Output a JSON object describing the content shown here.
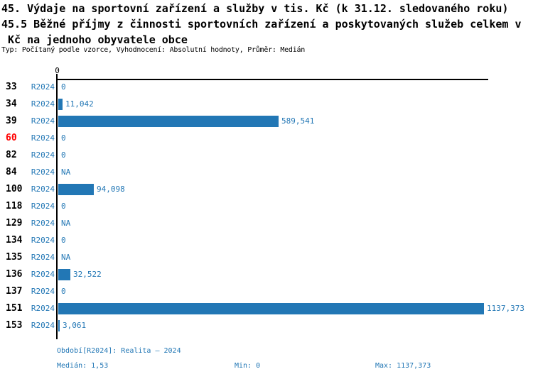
{
  "title": {
    "line1": "45. Výdaje na sportovní zařízení a služby v tis. Kč (k 31.12. sledovaného roku)",
    "line2": "45.5 Běžné příjmy z činnosti sportovních zařízení a poskytovaných služeb celkem v",
    "line3": " Kč na jednoho obyvatele obce",
    "meta": "Typ: Počítaný podle vzorce, Vyhodnocení: Absolutní hodnoty, Průměr: Medián"
  },
  "colors": {
    "bar_blue": "#2277b5",
    "text_blue": "#2277b5",
    "highlight_red": "#ff0000",
    "axis_black": "#000000",
    "background": "#ffffff"
  },
  "chart_data": {
    "type": "bar",
    "orientation": "horizontal",
    "title": "45. Výdaje na sportovní zařízení a služby v tis. Kč (k 31.12. sledovaného roku) — 45.5 Běžné příjmy z činnosti sportovních zařízení a poskytovaných služeb celkem v Kč na jednoho obyvatele obce",
    "series_label": "R2024",
    "axis_tick_label": "0",
    "xlim": [
      0,
      1137.373
    ],
    "grid": false,
    "categories": [
      "33",
      "34",
      "39",
      "60",
      "82",
      "84",
      "100",
      "118",
      "129",
      "134",
      "135",
      "136",
      "137",
      "151",
      "153"
    ],
    "values": [
      0,
      11.042,
      589.541,
      0,
      0,
      null,
      94.098,
      0,
      null,
      0,
      null,
      32.522,
      0,
      1137.373,
      3.061
    ],
    "value_labels": [
      "0",
      "11,042",
      "589,541",
      "0",
      "0",
      "NA",
      "94,098",
      "0",
      "NA",
      "0",
      "NA",
      "32,522",
      "0",
      "1137,373",
      "3,061"
    ],
    "highlighted_categories": [
      "60"
    ]
  },
  "footer": {
    "period": "Období[R2024]: Realita – 2024",
    "median": "Medián: 1,53",
    "min": "Min: 0",
    "max": "Max: 1137,373"
  }
}
